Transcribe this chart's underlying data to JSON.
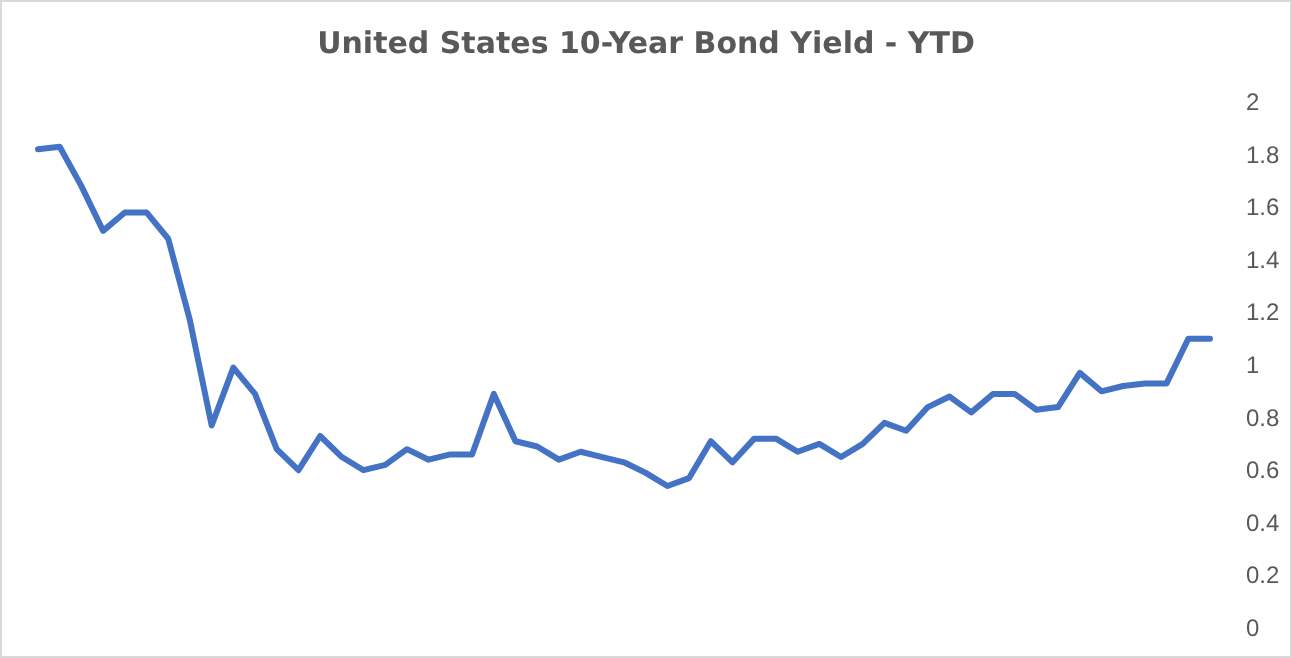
{
  "chart_data": {
    "type": "line",
    "title": "United States 10-Year Bond Yield - YTD",
    "categories": [
      null,
      null,
      null,
      null,
      null,
      null,
      null,
      null,
      null,
      null,
      null,
      null,
      null,
      null,
      null,
      null,
      null,
      null,
      null,
      null,
      null,
      null,
      null,
      null,
      null,
      null,
      null,
      null,
      null,
      null,
      null,
      null,
      null,
      null,
      null,
      null,
      null,
      null,
      null,
      null,
      null,
      null,
      null,
      null,
      null,
      null,
      null,
      null,
      null,
      null,
      null,
      null,
      null,
      null,
      null
    ],
    "series": [
      {
        "color": "#4472c4",
        "values": [
          1.82,
          1.83,
          1.68,
          1.51,
          1.58,
          1.58,
          1.48,
          1.17,
          0.77,
          0.99,
          0.89,
          0.68,
          0.6,
          0.73,
          0.65,
          0.6,
          0.62,
          0.68,
          0.64,
          0.66,
          0.66,
          0.89,
          0.71,
          0.69,
          0.64,
          0.67,
          0.65,
          0.63,
          0.59,
          0.54,
          0.57,
          0.71,
          0.63,
          0.72,
          0.72,
          0.67,
          0.7,
          0.65,
          0.7,
          0.78,
          0.75,
          0.84,
          0.88,
          0.82,
          0.89,
          0.89,
          0.83,
          0.84,
          0.97,
          0.9,
          0.92,
          0.93,
          0.93,
          1.1,
          1.1
        ]
      }
    ],
    "ylim": [
      0,
      2
    ],
    "yticks": [
      0,
      0.2,
      0.4,
      0.6,
      0.8,
      1,
      1.2,
      1.4,
      1.6,
      1.8,
      2
    ],
    "grid": false,
    "marker": "none",
    "line_style": "solid"
  }
}
